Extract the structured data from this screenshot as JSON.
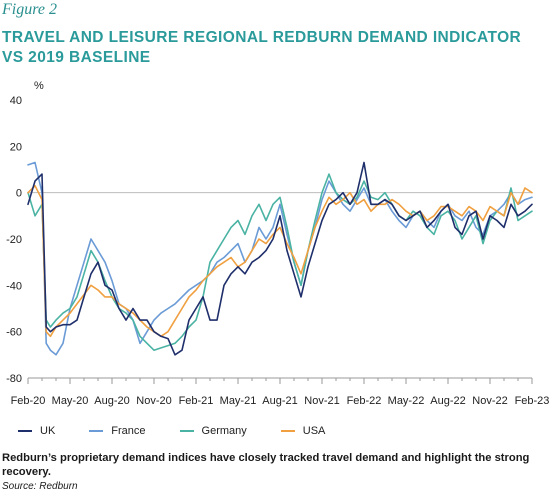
{
  "figure_label": "Figure 2",
  "title_line1": "TRAVEL AND LEISURE REGIONAL REDBURN DEMAND INDICATOR",
  "title_line2": "VS 2019 BASELINE",
  "caption": "Redburn’s proprietary demand indices have closely tracked travel demand and highlight the strong recovery.",
  "source": "Source: Redburn",
  "chart_data": {
    "type": "line",
    "title": "TRAVEL AND LEISURE REGIONAL REDBURN DEMAND INDICATOR VS 2019 BASELINE",
    "ylabel": "%",
    "xlabel": "",
    "ylim": [
      -80,
      40
    ],
    "yticks": [
      40,
      20,
      0,
      -20,
      -40,
      -60,
      -80
    ],
    "xlim": [
      0,
      36
    ],
    "x_tick_positions": [
      0,
      3,
      6,
      9,
      12,
      15,
      18,
      21,
      24,
      27,
      30,
      33,
      36
    ],
    "x_tick_labels": [
      "Feb-20",
      "May-20",
      "Aug-20",
      "Nov-20",
      "Feb-21",
      "May-21",
      "Aug-21",
      "Nov-21",
      "Feb-22",
      "May-22",
      "Aug-22",
      "Nov-22",
      "Feb-23"
    ],
    "x_unit": "months since Feb-20",
    "grid": false,
    "zero_line": true,
    "legend_position": "bottom",
    "series": [
      {
        "name": "UK",
        "color": "#1f2f6b",
        "x": [
          0,
          0.5,
          1,
          1.3,
          1.6,
          2,
          2.5,
          3,
          3.5,
          4,
          4.5,
          5,
          5.5,
          6,
          6.5,
          7,
          7.5,
          8,
          8.5,
          9,
          9.5,
          10,
          10.5,
          11,
          11.5,
          12,
          12.5,
          13,
          13.5,
          14,
          14.5,
          15,
          15.5,
          16,
          16.5,
          17,
          17.5,
          18,
          18.5,
          19,
          19.5,
          20,
          20.5,
          21,
          21.5,
          22,
          22.5,
          23,
          23.5,
          24,
          24.5,
          25,
          25.5,
          26,
          26.5,
          27,
          27.5,
          28,
          28.5,
          29,
          29.5,
          30,
          30.5,
          31,
          31.5,
          32,
          32.5,
          33,
          33.5,
          34,
          34.5,
          35,
          35.5,
          36
        ],
        "values": [
          -5,
          5,
          8,
          -58,
          -60,
          -58,
          -57,
          -57,
          -55,
          -45,
          -35,
          -30,
          -40,
          -42,
          -50,
          -55,
          -50,
          -55,
          -55,
          -60,
          -62,
          -63,
          -70,
          -68,
          -55,
          -50,
          -45,
          -55,
          -55,
          -40,
          -35,
          -32,
          -35,
          -30,
          -28,
          -25,
          -20,
          -10,
          -25,
          -35,
          -45,
          -32,
          -22,
          -12,
          -5,
          -3,
          0,
          -5,
          0,
          13,
          -5,
          -5,
          -3,
          -5,
          -10,
          -12,
          -10,
          -8,
          -15,
          -12,
          -8,
          -5,
          -15,
          -18,
          -10,
          -8,
          -20,
          -10,
          -12,
          -15,
          -5,
          -10,
          -8,
          -5
        ]
      },
      {
        "name": "France",
        "color": "#6b9bd6",
        "x": [
          0,
          0.5,
          1,
          1.3,
          1.6,
          2,
          2.5,
          3,
          3.5,
          4,
          4.5,
          5,
          5.5,
          6,
          6.5,
          7,
          7.5,
          8,
          8.5,
          9,
          9.5,
          10,
          10.5,
          11,
          11.5,
          12,
          12.5,
          13,
          13.5,
          14,
          14.5,
          15,
          15.5,
          16,
          16.5,
          17,
          17.5,
          18,
          18.5,
          19,
          19.5,
          20,
          20.5,
          21,
          21.5,
          22,
          22.5,
          23,
          23.5,
          24,
          24.5,
          25,
          25.5,
          26,
          26.5,
          27,
          27.5,
          28,
          28.5,
          29,
          29.5,
          30,
          30.5,
          31,
          31.5,
          32,
          32.5,
          33,
          33.5,
          34,
          34.5,
          35,
          35.5,
          36
        ],
        "values": [
          12,
          13,
          0,
          -65,
          -68,
          -70,
          -65,
          -50,
          -40,
          -30,
          -20,
          -25,
          -30,
          -38,
          -48,
          -50,
          -55,
          -65,
          -60,
          -55,
          -52,
          -50,
          -48,
          -45,
          -42,
          -40,
          -38,
          -35,
          -30,
          -28,
          -25,
          -22,
          -30,
          -25,
          -15,
          -20,
          -15,
          -5,
          -18,
          -30,
          -40,
          -25,
          -15,
          -3,
          5,
          0,
          -5,
          -8,
          -3,
          2,
          -5,
          -5,
          -3,
          -8,
          -12,
          -15,
          -10,
          -8,
          -12,
          -15,
          -8,
          -5,
          -10,
          -12,
          -8,
          -15,
          -18,
          -10,
          -8,
          -5,
          0,
          -5,
          -3,
          -2
        ]
      },
      {
        "name": "Germany",
        "color": "#4ab3a3",
        "x": [
          0,
          0.5,
          1,
          1.3,
          1.6,
          2,
          2.5,
          3,
          3.5,
          4,
          4.5,
          5,
          5.5,
          6,
          6.5,
          7,
          7.5,
          8,
          8.5,
          9,
          9.5,
          10,
          10.5,
          11,
          11.5,
          12,
          12.5,
          13,
          13.5,
          14,
          14.5,
          15,
          15.5,
          16,
          16.5,
          17,
          17.5,
          18,
          18.5,
          19,
          19.5,
          20,
          20.5,
          21,
          21.5,
          22,
          22.5,
          23,
          23.5,
          24,
          24.5,
          25,
          25.5,
          26,
          26.5,
          27,
          27.5,
          28,
          28.5,
          29,
          29.5,
          30,
          30.5,
          31,
          31.5,
          32,
          32.5,
          33,
          33.5,
          34,
          34.5,
          35,
          35.5,
          36
        ],
        "values": [
          0,
          -10,
          -5,
          -55,
          -58,
          -55,
          -52,
          -50,
          -45,
          -35,
          -25,
          -30,
          -38,
          -45,
          -50,
          -52,
          -55,
          -62,
          -65,
          -68,
          -67,
          -66,
          -65,
          -62,
          -58,
          -55,
          -45,
          -30,
          -25,
          -20,
          -15,
          -12,
          -18,
          -10,
          -5,
          -12,
          -5,
          -2,
          -15,
          -30,
          -40,
          -25,
          -12,
          0,
          8,
          0,
          -3,
          -5,
          -2,
          5,
          -2,
          -3,
          0,
          -5,
          -10,
          -12,
          -8,
          -10,
          -15,
          -18,
          -10,
          -8,
          -12,
          -20,
          -15,
          -10,
          -22,
          -12,
          -8,
          -10,
          2,
          -12,
          -10,
          -8
        ]
      },
      {
        "name": "USA",
        "color": "#f0a040",
        "x": [
          0,
          0.5,
          1,
          1.3,
          1.6,
          2,
          2.5,
          3,
          3.5,
          4,
          4.5,
          5,
          5.5,
          6,
          6.5,
          7,
          7.5,
          8,
          8.5,
          9,
          9.5,
          10,
          10.5,
          11,
          11.5,
          12,
          12.5,
          13,
          13.5,
          14,
          14.5,
          15,
          15.5,
          16,
          16.5,
          17,
          17.5,
          18,
          18.5,
          19,
          19.5,
          20,
          20.5,
          21,
          21.5,
          22,
          22.5,
          23,
          23.5,
          24,
          24.5,
          25,
          25.5,
          26,
          26.5,
          27,
          27.5,
          28,
          28.5,
          29,
          29.5,
          30,
          30.5,
          31,
          31.5,
          32,
          32.5,
          33,
          33.5,
          34,
          34.5,
          35,
          35.5,
          36
        ],
        "values": [
          0,
          3,
          -3,
          -60,
          -62,
          -58,
          -55,
          -52,
          -48,
          -44,
          -40,
          -42,
          -45,
          -45,
          -48,
          -50,
          -52,
          -55,
          -58,
          -60,
          -62,
          -60,
          -55,
          -50,
          -45,
          -42,
          -38,
          -35,
          -32,
          -30,
          -28,
          -32,
          -30,
          -25,
          -20,
          -22,
          -18,
          -15,
          -22,
          -28,
          -35,
          -25,
          -15,
          -8,
          -2,
          -5,
          -3,
          0,
          -5,
          -3,
          -8,
          -5,
          -5,
          -3,
          -5,
          -8,
          -10,
          -8,
          -12,
          -10,
          -6,
          -6,
          -8,
          -10,
          -6,
          -8,
          -12,
          -6,
          -8,
          -10,
          0,
          -5,
          2,
          0
        ]
      }
    ]
  }
}
